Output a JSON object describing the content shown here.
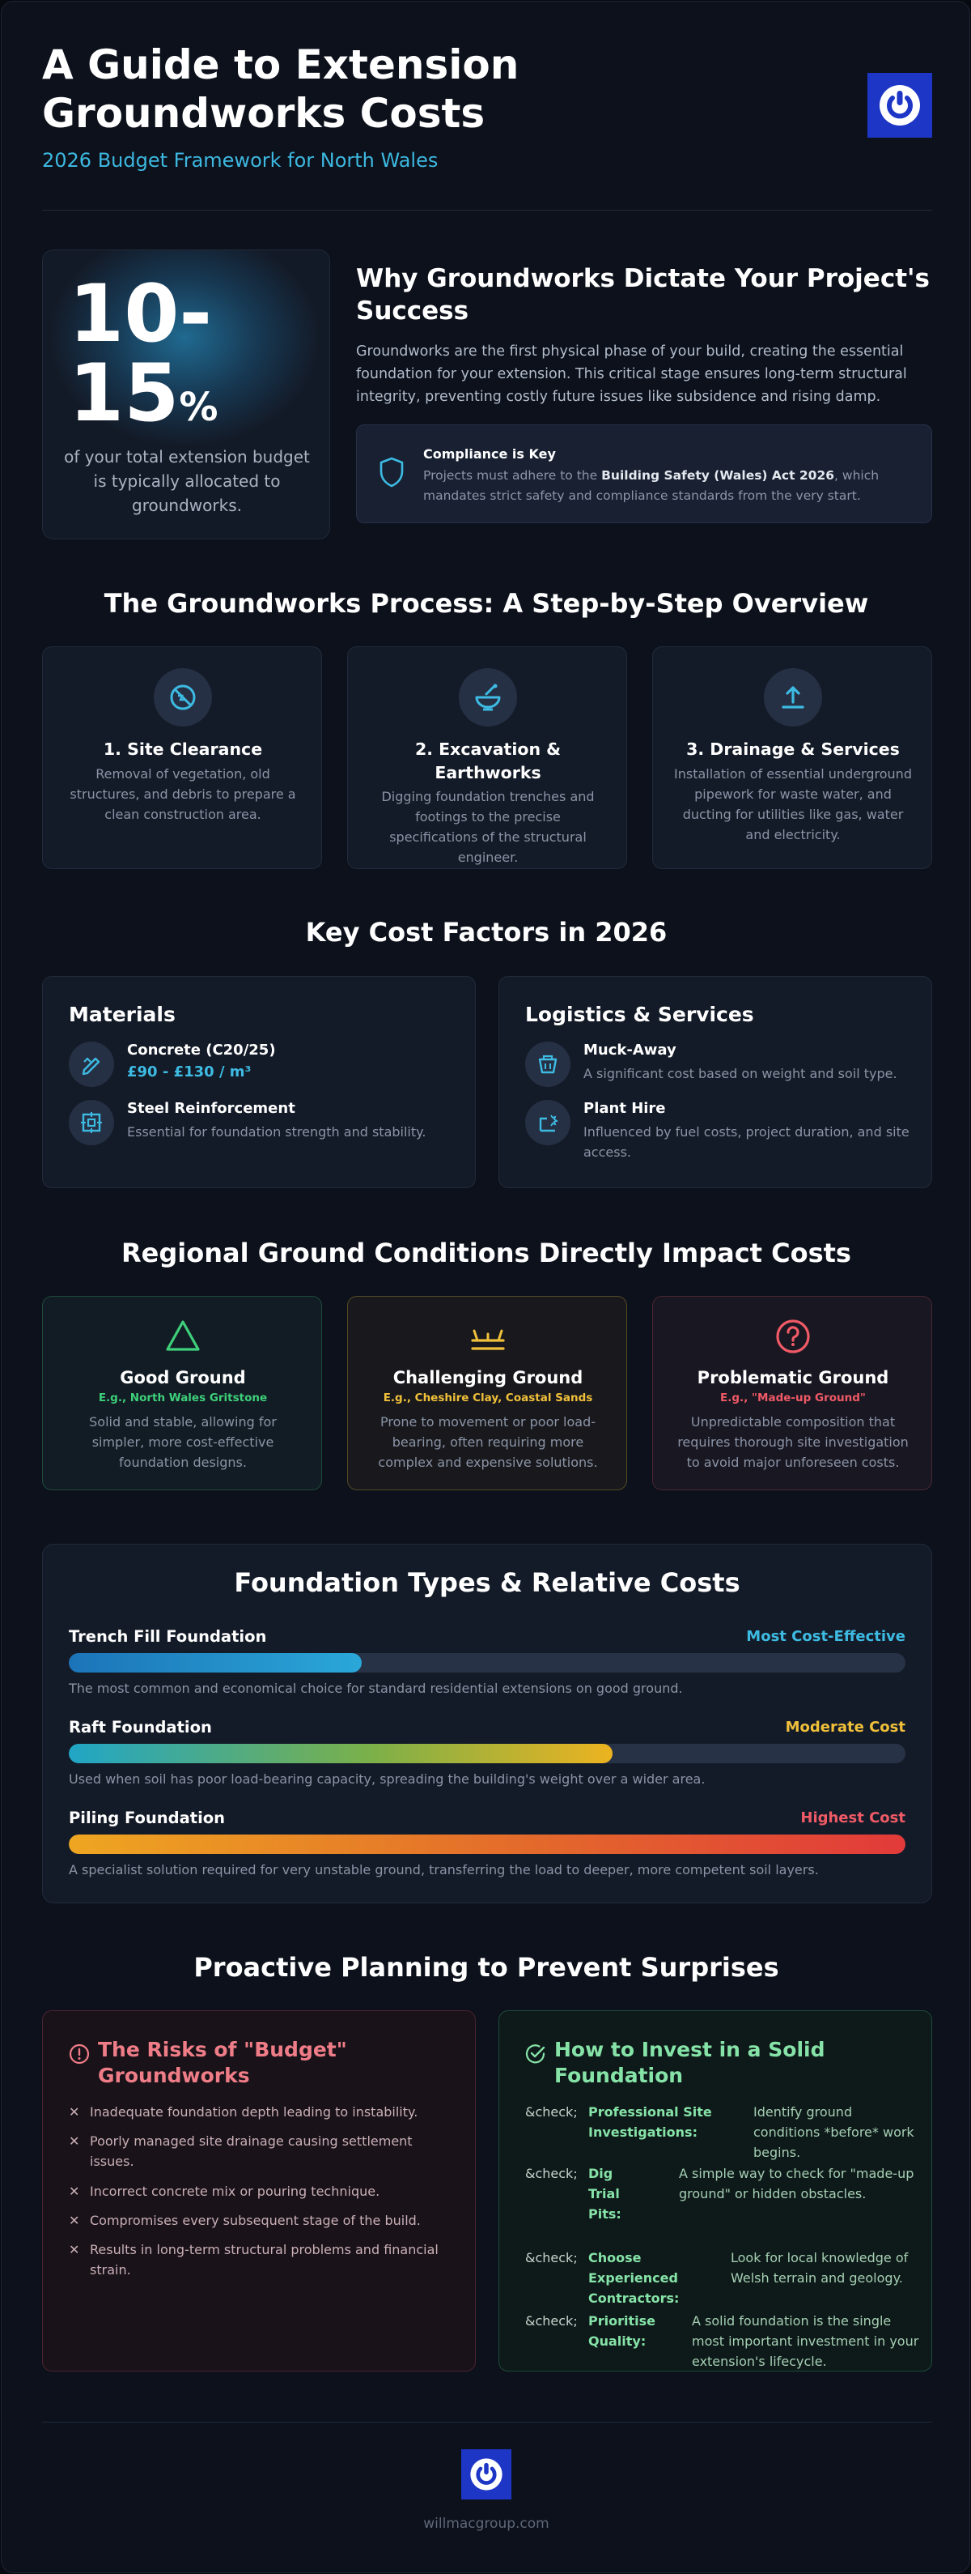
{
  "header": {
    "title": "A Guide to Extension Groundworks Costs",
    "subtitle": "2026 Budget Framework for North Wales"
  },
  "stat": {
    "value": "10-15",
    "unit": "%",
    "description": "of your total extension budget is typically allocated to groundworks."
  },
  "why": {
    "title": "Why Groundworks Dictate Your Project's Success",
    "body": "Groundworks are the first physical phase of your build, creating the essential foundation for your extension. This critical stage ensures long-term structural integrity, preventing costly future issues like subsidence and rising damp."
  },
  "compliance": {
    "title": "Compliance is Key",
    "text_before": "Projects must adhere to the ",
    "text_bold": "Building Safety (Wales) Act 2026",
    "text_after": ", which mandates strict safety and compliance standards from the very start."
  },
  "process": {
    "heading": "The Groundworks Process: A Step-by-Step Overview",
    "steps": [
      {
        "title": "1. Site Clearance",
        "desc": "Removal of vegetation, old structures, and debris to prepare a clean construction area.",
        "icon": "no-sign-icon"
      },
      {
        "title": "2. Excavation & Earthworks",
        "desc": "Digging foundation trenches and footings to the precise specifications of the structural engineer.",
        "icon": "excavator-bowl-icon"
      },
      {
        "title": "3. Drainage & Services",
        "desc": "Installation of essential underground pipework for waste water, and ducting for utilities like gas, water and electricity.",
        "icon": "upload-icon"
      }
    ]
  },
  "cost_factors": {
    "heading": "Key Cost Factors in 2026",
    "materials": {
      "title": "Materials",
      "items": [
        {
          "name": "Concrete (C20/25)",
          "value": "£90 - £130 / m³",
          "icon": "pencil-ruler-icon"
        },
        {
          "name": "Steel Reinforcement",
          "desc": "Essential for foundation strength and stability.",
          "icon": "grid-square-icon"
        }
      ]
    },
    "logistics": {
      "title": "Logistics & Services",
      "items": [
        {
          "name": "Muck-Away",
          "desc": "A significant cost based on weight and soil type.",
          "icon": "skip-bin-icon"
        },
        {
          "name": "Plant Hire",
          "desc": "Influenced by fuel costs, project duration, and site access.",
          "icon": "machinery-icon"
        }
      ]
    }
  },
  "ground": {
    "heading": "Regional Ground Conditions Directly Impact Costs",
    "cards": [
      {
        "title": "Good Ground",
        "example": "E.g., North Wales Gritstone",
        "desc": "Solid and stable, allowing for simpler, more cost-effective foundation designs.",
        "color": "#3ecf7a",
        "icon": "triangle-icon"
      },
      {
        "title": "Challenging Ground",
        "example": "E.g., Cheshire Clay, Coastal Sands",
        "desc": "Prone to movement or poor load-bearing, often requiring more complex and expensive solutions.",
        "color": "#f0c03a",
        "icon": "layers-icon"
      },
      {
        "title": "Problematic Ground",
        "example": "E.g., \"Made-up Ground\"",
        "desc": "Unpredictable composition that requires thorough site investigation to avoid major unforeseen costs.",
        "color": "#ef5a66",
        "icon": "question-circle-icon"
      }
    ]
  },
  "foundations": {
    "heading": "Foundation Types & Relative Costs",
    "items": [
      {
        "name": "Trench Fill Foundation",
        "cost": "Most Cost-Effective",
        "level": 0.35,
        "desc": "The most common and economical choice for standard residential extensions on good ground.",
        "color": "#3dbbe3"
      },
      {
        "name": "Raft Foundation",
        "cost": "Moderate Cost",
        "level": 0.65,
        "desc": "Used when soil has poor load-bearing capacity, spreading the building's weight over a wider area.",
        "color": "#f0c03a"
      },
      {
        "name": "Piling Foundation",
        "cost": "Highest Cost",
        "level": 1.0,
        "desc": "A specialist solution required for very unstable ground, transferring the load to deeper, more competent soil layers.",
        "color": "#ef5a66"
      }
    ]
  },
  "planning": {
    "heading": "Proactive Planning to Prevent Surprises",
    "risks": {
      "title": "The Risks of \"Budget\" Groundworks",
      "items": [
        "Inadequate foundation depth leading to instability.",
        "Poorly managed site drainage causing settlement issues.",
        "Incorrect concrete mix or pouring technique.",
        "Compromises every subsequent stage of the build.",
        "Results in long-term structural problems and financial strain."
      ]
    },
    "invest": {
      "title": "How to Invest in a Solid Foundation",
      "marker": "&check;",
      "items": [
        {
          "key": "Professional Site Investigations:",
          "value": "Identify ground conditions *before* work begins."
        },
        {
          "key": "Dig Trial Pits:",
          "value": "A simple way to check for \"made-up ground\" or hidden obstacles."
        },
        {
          "key": "Choose Experienced Contractors:",
          "value": "Look for local knowledge of Welsh terrain and geology."
        },
        {
          "key": "Prioritise Quality:",
          "value": "A solid foundation is the single most important investment in your extension's lifecycle."
        }
      ]
    }
  },
  "footer": {
    "url": "willmacgroup.com"
  }
}
